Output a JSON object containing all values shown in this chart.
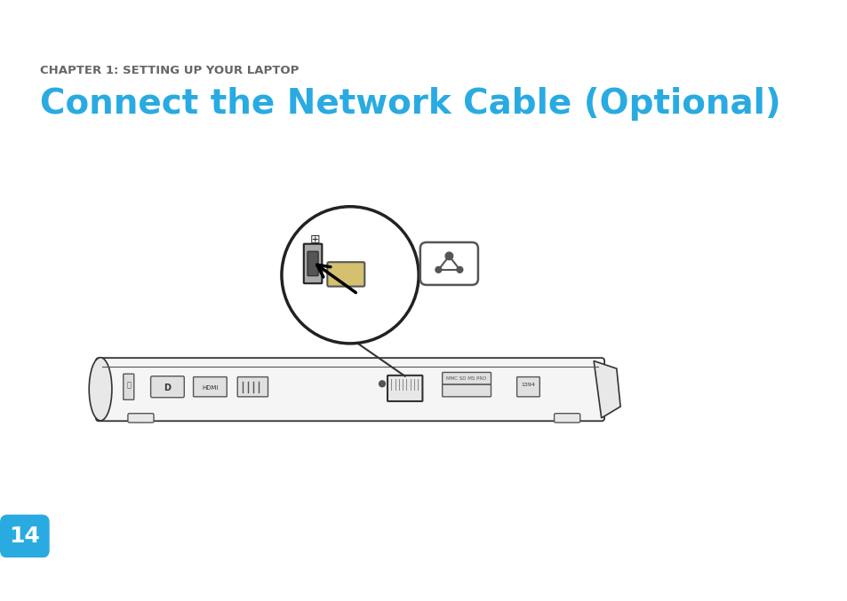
{
  "bg_color": "#ffffff",
  "chapter_text": "CHAPTER 1: SETTING UP YOUR LAPTOP",
  "chapter_color": "#666666",
  "chapter_fontsize": 9.5,
  "title_text": "Connect the Network Cable (Optional)",
  "title_color": "#29abe2",
  "title_fontsize": 28,
  "page_number": "14",
  "page_num_bg": "#29abe2",
  "page_num_color": "#ffffff",
  "page_num_fontsize": 18
}
